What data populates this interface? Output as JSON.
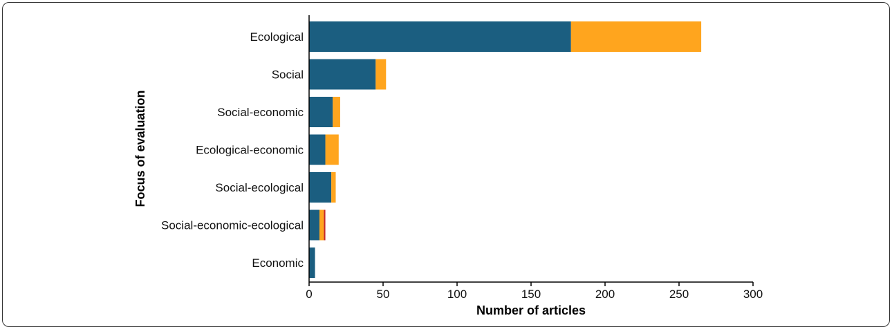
{
  "chart_data": {
    "type": "bar",
    "orientation": "horizontal",
    "stacked": true,
    "title": "",
    "xlabel": "Number of articles",
    "ylabel": "Focus of evaluation",
    "xlim": [
      0,
      300
    ],
    "xticks": [
      0,
      50,
      100,
      150,
      200,
      250,
      300
    ],
    "categories": [
      "Ecological",
      "Social",
      "Social-economic",
      "Ecological-economic",
      "Social-ecological",
      "Social-economic-ecological",
      "Economic"
    ],
    "series": [
      {
        "color": "#1b5e80",
        "values": [
          177,
          45,
          16,
          11,
          15,
          7,
          4
        ]
      },
      {
        "color": "#ffa51e",
        "values": [
          88,
          7,
          5,
          9,
          3,
          3,
          0
        ]
      },
      {
        "color": "#c62828",
        "values": [
          0,
          0,
          0,
          0,
          0,
          1,
          0
        ]
      }
    ],
    "grid": false,
    "legend": "none"
  }
}
